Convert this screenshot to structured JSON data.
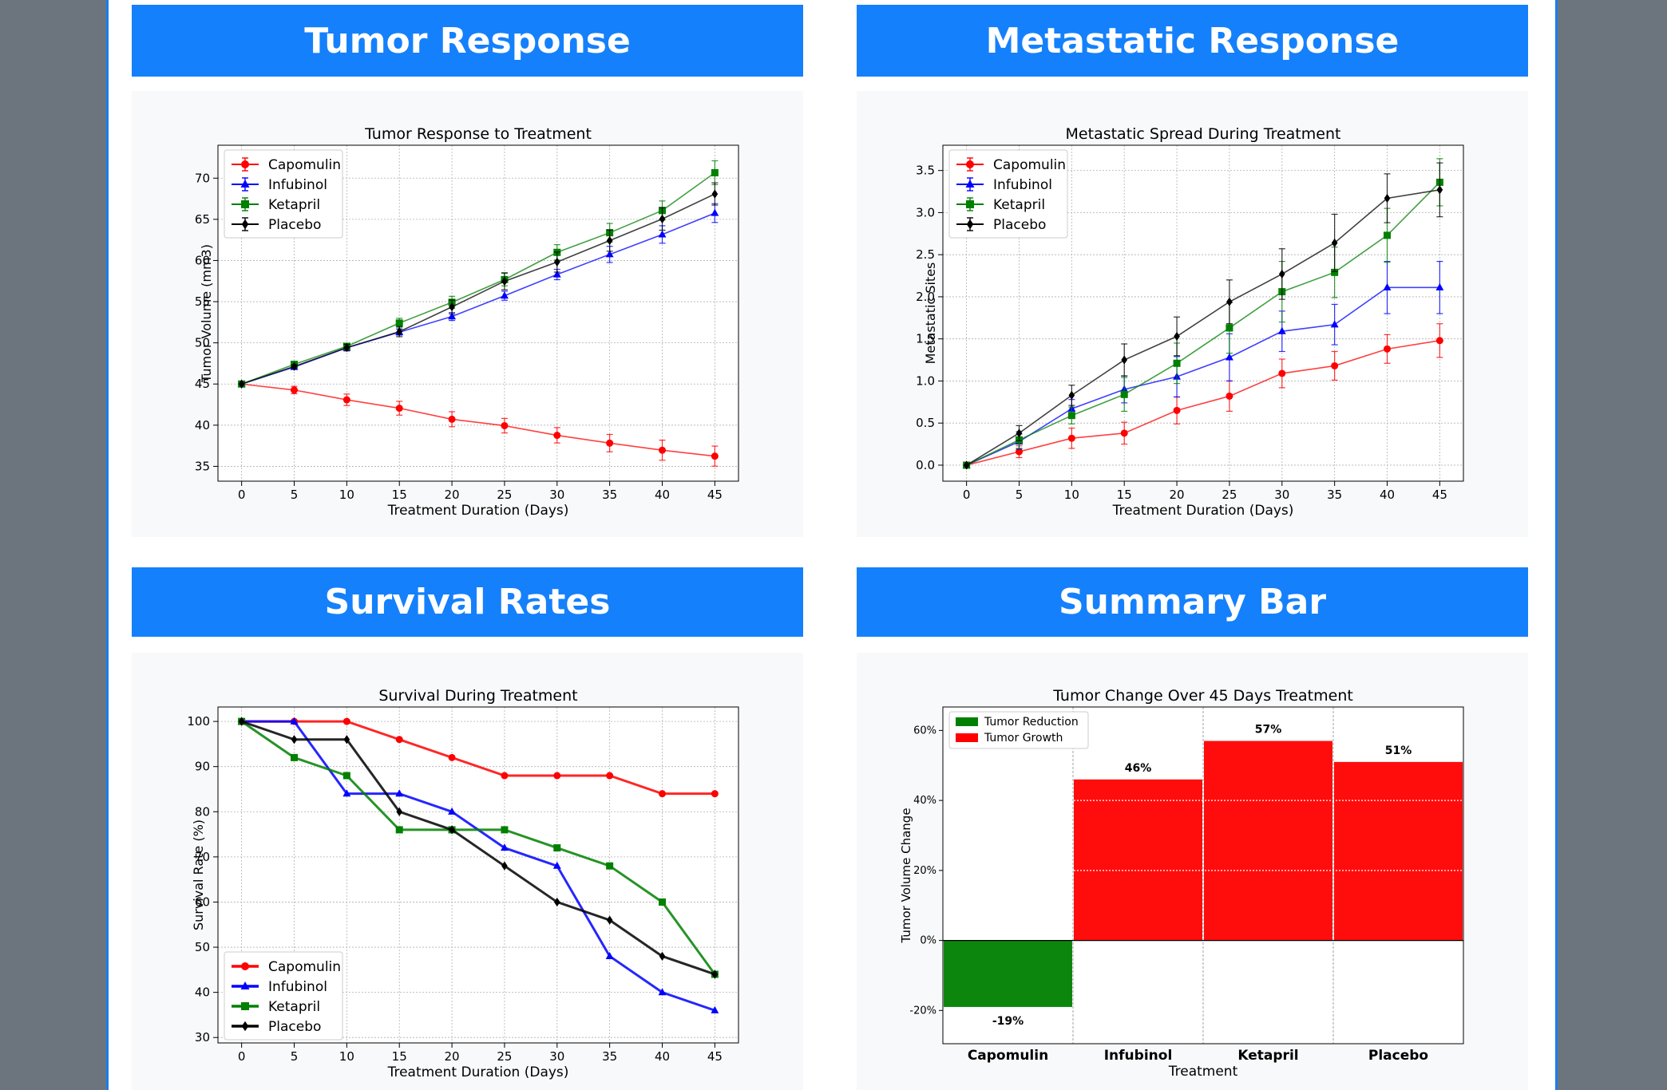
{
  "sections": [
    {
      "title": "Tumor Response"
    },
    {
      "title": "Metastatic Response"
    },
    {
      "title": "Survival Rates"
    },
    {
      "title": "Summary Bar"
    }
  ],
  "legend_labels": [
    "Capomulin",
    "Infubinol",
    "Ketapril",
    "Placebo"
  ],
  "colors": {
    "Capomulin": "#ff0000",
    "Infubinol": "#0000ff",
    "Ketapril": "#008000",
    "Placebo": "#000000",
    "reduction": "#008000",
    "growth": "#ff0000",
    "header": "#1580fb"
  },
  "chart_data": [
    {
      "type": "line",
      "title": "Tumor Response to Treatment",
      "xlabel": "Treatment Duration (Days)",
      "ylabel": "Tumor Volume (mm3)",
      "x": [
        0,
        5,
        10,
        15,
        20,
        25,
        30,
        35,
        40,
        45
      ],
      "xlim": [
        -2.25,
        47.25
      ],
      "ylim": [
        33.2,
        74
      ],
      "yticks": [
        35,
        40,
        45,
        50,
        55,
        60,
        65,
        70
      ],
      "error_bars": true,
      "legend": "upper-left",
      "grid": true,
      "series": [
        {
          "name": "Capomulin",
          "values": [
            45.0,
            44.27,
            43.08,
            42.06,
            40.72,
            39.94,
            38.77,
            37.82,
            36.96,
            36.24
          ],
          "errors": [
            0,
            0.45,
            0.7,
            0.84,
            0.91,
            0.88,
            0.93,
            1.05,
            1.22,
            1.22
          ]
        },
        {
          "name": "Infubinol",
          "values": [
            45.0,
            47.06,
            49.4,
            51.3,
            53.2,
            55.72,
            58.3,
            60.74,
            63.16,
            65.76
          ],
          "errors": [
            0,
            0.24,
            0.28,
            0.36,
            0.48,
            0.55,
            0.63,
            0.98,
            1.06,
            1.14
          ]
        },
        {
          "name": "Ketapril",
          "values": [
            45.0,
            47.39,
            49.58,
            52.4,
            54.92,
            57.68,
            60.99,
            63.37,
            66.07,
            70.66
          ],
          "errors": [
            0,
            0.26,
            0.36,
            0.58,
            0.73,
            0.76,
            0.93,
            1.13,
            1.16,
            1.45
          ]
        },
        {
          "name": "Placebo",
          "values": [
            45.0,
            47.13,
            49.42,
            51.36,
            54.36,
            57.48,
            59.81,
            62.42,
            65.05,
            68.08
          ],
          "errors": [
            0,
            0.22,
            0.4,
            0.61,
            0.84,
            1.03,
            1.22,
            1.29,
            1.37,
            1.35
          ]
        }
      ]
    },
    {
      "type": "line",
      "title": "Metastatic Spread During Treatment",
      "xlabel": "Treatment Duration (Days)",
      "ylabel": "Metastatic Sites",
      "x": [
        0,
        5,
        10,
        15,
        20,
        25,
        30,
        35,
        40,
        45
      ],
      "xlim": [
        -2.25,
        47.25
      ],
      "ylim": [
        -0.19,
        3.8
      ],
      "yticks": [
        0.0,
        0.5,
        1.0,
        1.5,
        2.0,
        2.5,
        3.0,
        3.5
      ],
      "tick_format": "1dp",
      "error_bars": true,
      "legend": "upper-left",
      "grid": true,
      "series": [
        {
          "name": "Capomulin",
          "values": [
            0.0,
            0.16,
            0.32,
            0.38,
            0.65,
            0.82,
            1.09,
            1.18,
            1.38,
            1.48
          ],
          "errors": [
            0,
            0.07,
            0.12,
            0.13,
            0.16,
            0.18,
            0.17,
            0.17,
            0.17,
            0.2
          ]
        },
        {
          "name": "Infubinol",
          "values": [
            0.0,
            0.28,
            0.67,
            0.9,
            1.05,
            1.28,
            1.59,
            1.67,
            2.11,
            2.11
          ],
          "errors": [
            0,
            0.09,
            0.11,
            0.16,
            0.24,
            0.28,
            0.24,
            0.24,
            0.31,
            0.31
          ]
        },
        {
          "name": "Ketapril",
          "values": [
            0.0,
            0.3,
            0.59,
            0.84,
            1.21,
            1.63,
            2.06,
            2.29,
            2.73,
            3.36
          ],
          "errors": [
            0,
            0.1,
            0.1,
            0.2,
            0.24,
            0.3,
            0.36,
            0.3,
            0.32,
            0.28
          ]
        },
        {
          "name": "Placebo",
          "values": [
            0.0,
            0.38,
            0.83,
            1.25,
            1.53,
            1.94,
            2.27,
            2.64,
            3.17,
            3.27
          ],
          "errors": [
            0,
            0.09,
            0.12,
            0.19,
            0.23,
            0.26,
            0.3,
            0.34,
            0.29,
            0.32
          ]
        }
      ]
    },
    {
      "type": "line",
      "title": "Survival During Treatment",
      "xlabel": "Treatment Duration (Days)",
      "ylabel": "Survival Rate (%)",
      "x": [
        0,
        5,
        10,
        15,
        20,
        25,
        30,
        35,
        40,
        45
      ],
      "xlim": [
        -2.25,
        47.25
      ],
      "ylim": [
        28.8,
        103.2
      ],
      "yticks": [
        30,
        40,
        50,
        60,
        70,
        80,
        90,
        100
      ],
      "error_bars": false,
      "legend": "lower-left",
      "grid": true,
      "series": [
        {
          "name": "Capomulin",
          "values": [
            100,
            100,
            100,
            96,
            92,
            88,
            88,
            88,
            84,
            84
          ]
        },
        {
          "name": "Infubinol",
          "values": [
            100,
            100,
            84,
            84,
            80,
            72,
            68,
            48,
            40,
            36
          ]
        },
        {
          "name": "Ketapril",
          "values": [
            100,
            92,
            88,
            76,
            76,
            76,
            72,
            68,
            60,
            44
          ]
        },
        {
          "name": "Placebo",
          "values": [
            100,
            96,
            96,
            80,
            76,
            68,
            60,
            56,
            48,
            44
          ]
        }
      ]
    },
    {
      "type": "bar",
      "title": "Tumor Change Over 45 Days Treatment",
      "xlabel": "Treatment",
      "ylabel": "Tumor Volume Change",
      "categories": [
        "Capomulin",
        "Infubinol",
        "Ketapril",
        "Placebo"
      ],
      "values": [
        -19,
        46,
        57,
        51
      ],
      "value_labels": [
        "-19%",
        "46%",
        "57%",
        "51%"
      ],
      "ylim": [
        -29.5,
        66.7
      ],
      "yticks": [
        -20,
        0,
        20,
        40,
        60
      ],
      "ytick_labels": [
        "-20%",
        "0%",
        "20%",
        "40%",
        "60%"
      ],
      "legend": "upper-left",
      "legend_entries": [
        "Tumor Reduction",
        "Tumor Growth"
      ],
      "grid": true
    }
  ]
}
